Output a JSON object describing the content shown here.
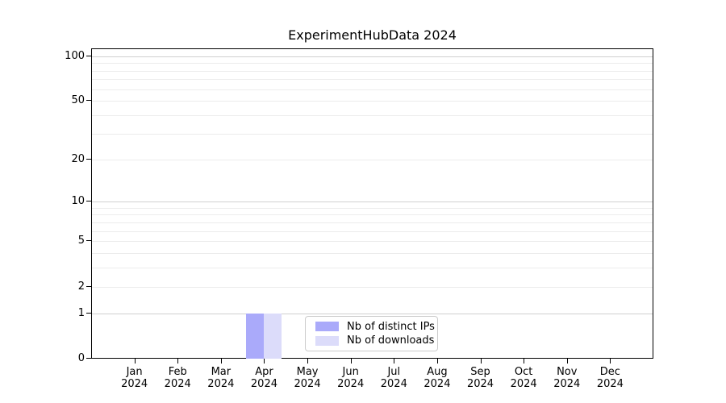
{
  "chart_data": {
    "type": "bar",
    "title": "ExperimentHubData 2024",
    "x": {
      "months": [
        "Jan",
        "Feb",
        "Mar",
        "Apr",
        "May",
        "Jun",
        "Jul",
        "Aug",
        "Sep",
        "Oct",
        "Nov",
        "Dec"
      ],
      "year": "2024"
    },
    "series": [
      {
        "name": "Nb of distinct IPs",
        "color": "#aaaafa",
        "values": [
          0,
          0,
          0,
          1,
          0,
          0,
          0,
          0,
          0,
          0,
          0,
          0
        ]
      },
      {
        "name": "Nb of downloads",
        "color": "#dcdcfa",
        "values": [
          0,
          0,
          0,
          1,
          0,
          0,
          0,
          0,
          0,
          0,
          0,
          0
        ]
      }
    ],
    "y_axis": {
      "scale": "log10(1+y)",
      "ticks": [
        0,
        1,
        2,
        5,
        10,
        20,
        50,
        100
      ],
      "major_gridlines": [
        1,
        10,
        100
      ],
      "minor_gridlines": [
        2,
        3,
        4,
        5,
        6,
        7,
        8,
        9,
        20,
        30,
        40,
        50,
        60,
        70,
        80,
        90
      ],
      "max": 113
    },
    "legend": {
      "position": "lower center"
    },
    "grid": true
  },
  "colors": {
    "grid_major": "#d0d0d0",
    "grid_minor": "#ececec",
    "spine": "#000000",
    "legend_border": "#cccccc",
    "text": "#000000"
  }
}
